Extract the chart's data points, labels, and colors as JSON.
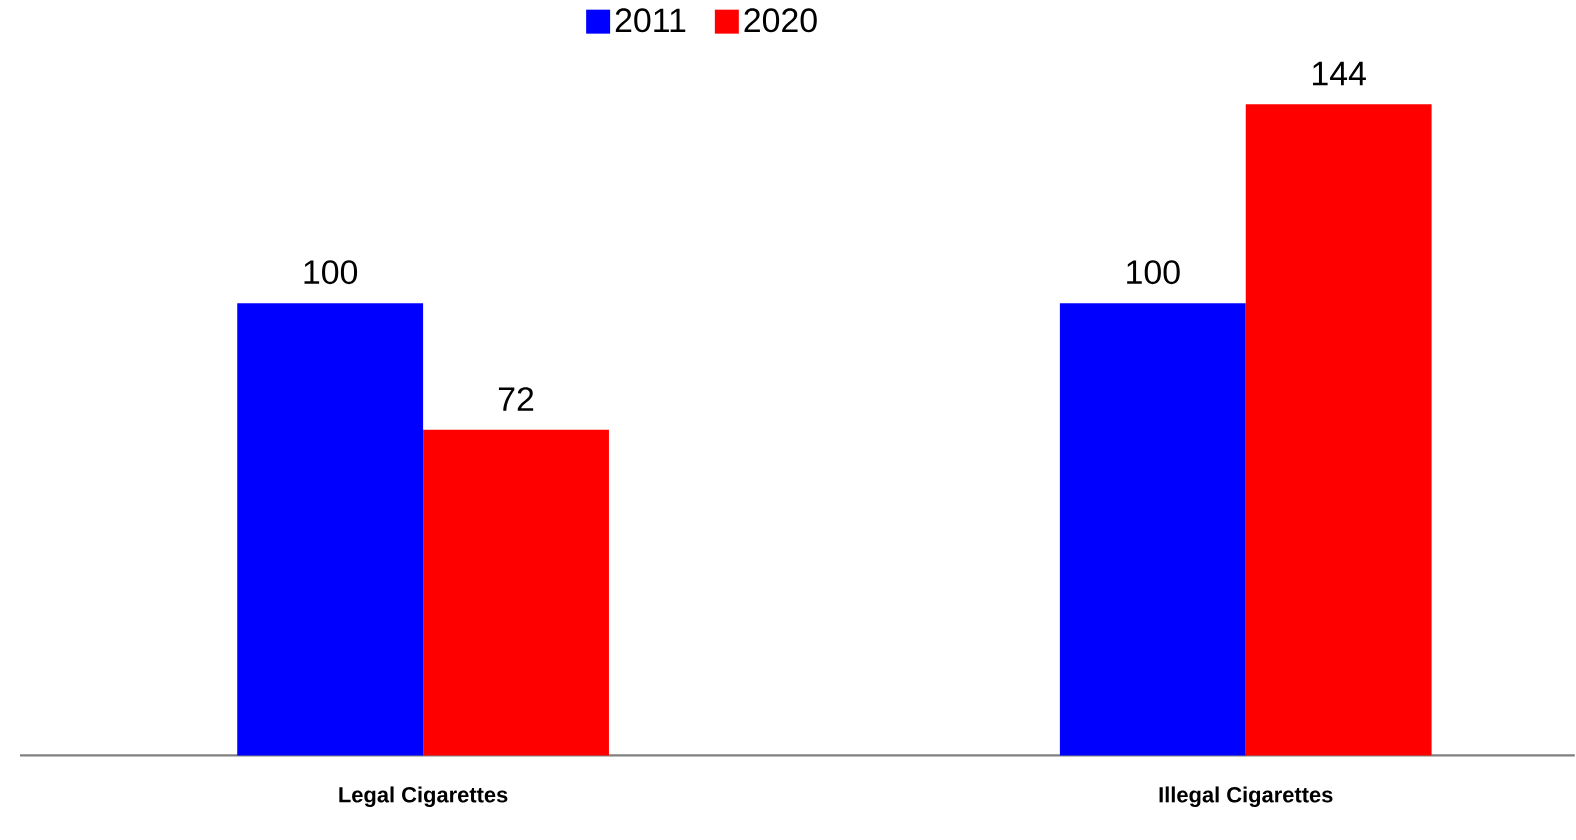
{
  "chart_data": {
    "type": "bar",
    "categories": [
      "Legal Cigarettes",
      "Illegal Cigarettes"
    ],
    "series": [
      {
        "name": "2011",
        "color": "#0000ff",
        "values": [
          100,
          100
        ]
      },
      {
        "name": "2020",
        "color": "#ff0000",
        "values": [
          72,
          144
        ]
      }
    ],
    "data_labels": true,
    "legend": "top"
  }
}
